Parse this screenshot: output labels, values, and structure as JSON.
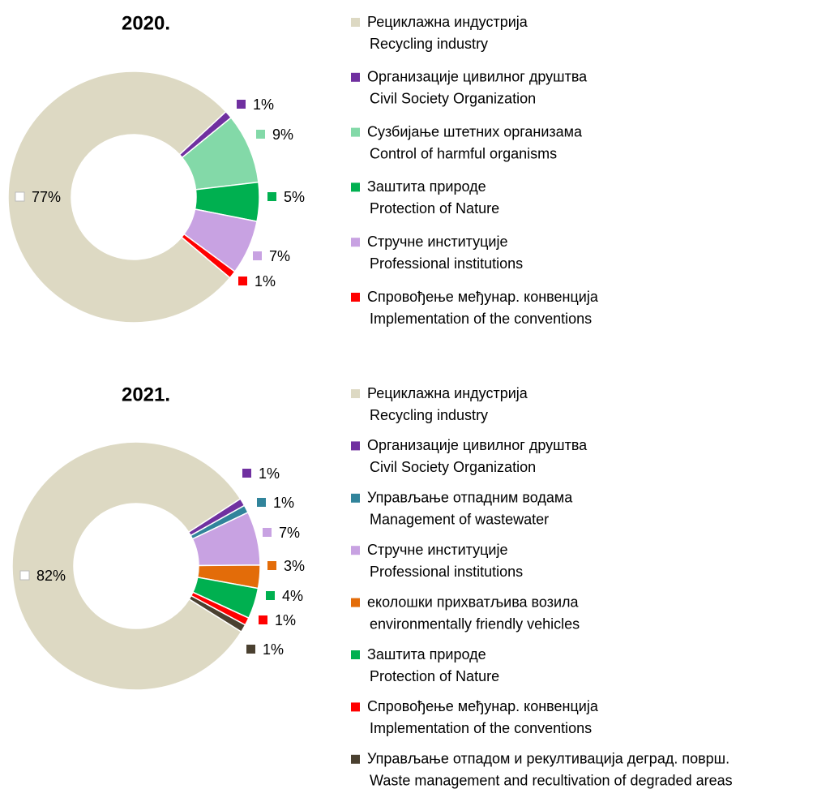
{
  "chart_data": [
    {
      "type": "donut",
      "title": "2020.",
      "categories": [
        [
          "Рециклажна индустрија",
          "Recycling industry"
        ],
        [
          "Организације цивилног друштва",
          "Civil Society Organization"
        ],
        [
          "Сузбијање штетних организама",
          "Control of harmful organisms"
        ],
        [
          "Заштита природе",
          "Protection of Nature"
        ],
        [
          "Стручне институције",
          "Professional institutions"
        ],
        [
          "Спровођење међунар. конвенција",
          "Implementation of the conventions"
        ]
      ],
      "values": [
        77,
        1,
        9,
        5,
        7,
        1
      ],
      "value_labels": [
        "77%",
        "1%",
        "9%",
        "5%",
        "7%",
        "1%"
      ],
      "colors": [
        "#ddd9c3",
        "#7030a0",
        "#83d9a8",
        "#00b050",
        "#c8a2e2",
        "#ff0000"
      ]
    },
    {
      "type": "donut",
      "title": "2021.",
      "categories": [
        [
          "Рециклажна индустрија",
          "Recycling industry"
        ],
        [
          "Организације цивилног друштва",
          "Civil Society Organization"
        ],
        [
          "Управљање отпадним водама",
          "Management of wastewater"
        ],
        [
          "Стручне институције",
          "Professional institutions"
        ],
        [
          "еколошки прихватљива возила",
          "environmentally friendly vehicles"
        ],
        [
          "Заштита природе",
          "Protection of Nature"
        ],
        [
          "Спровођење међунар. конвенција",
          "Implementation of the conventions"
        ],
        [
          "Управљање отпадом и рекултивација деград. површ.",
          "Waste management and recultivation of degraded areas"
        ]
      ],
      "values": [
        82,
        1,
        1,
        7,
        3,
        4,
        1,
        1
      ],
      "value_labels": [
        "82%",
        "1%",
        "1%",
        "7%",
        "3%",
        "4%",
        "1%",
        "1%"
      ],
      "colors": [
        "#ddd9c3",
        "#7030a0",
        "#31849b",
        "#c8a2e2",
        "#e36c09",
        "#00b050",
        "#ff0000",
        "#4a4030"
      ]
    }
  ]
}
